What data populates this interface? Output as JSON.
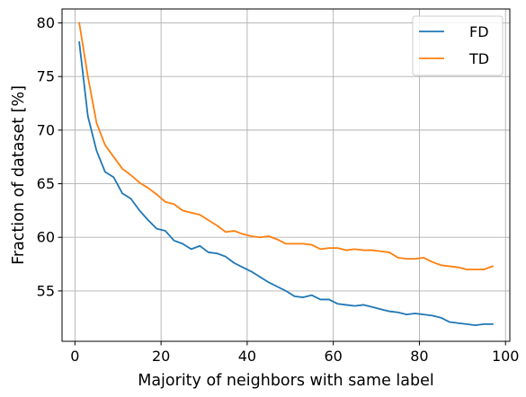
{
  "chart_data": {
    "type": "line",
    "xlabel": "Majority of neighbors with same label",
    "ylabel": "Fraction of dataset [%]",
    "xlim": [
      -3.0,
      101.0
    ],
    "ylim": [
      50.3,
      81.3
    ],
    "xticks": [
      0,
      20,
      40,
      60,
      80,
      100
    ],
    "yticks": [
      55,
      60,
      65,
      70,
      75,
      80
    ],
    "grid": true,
    "legend_position": "top-right",
    "colors": {
      "FD": "#1f77b4",
      "TD": "#ff7f0e"
    },
    "x": [
      1,
      3,
      5,
      7,
      9,
      11,
      13,
      15,
      17,
      19,
      21,
      23,
      25,
      27,
      29,
      31,
      33,
      35,
      37,
      39,
      41,
      43,
      45,
      47,
      49,
      51,
      53,
      55,
      57,
      59,
      61,
      63,
      65,
      67,
      69,
      71,
      73,
      75,
      77,
      79,
      81,
      83,
      85,
      87,
      89,
      91,
      93,
      95,
      97
    ],
    "series": [
      {
        "name": "FD",
        "values": [
          78.2,
          71.3,
          68.1,
          66.1,
          65.6,
          64.1,
          63.6,
          62.5,
          61.6,
          60.8,
          60.6,
          59.7,
          59.4,
          58.9,
          59.2,
          58.6,
          58.5,
          58.2,
          57.6,
          57.2,
          56.8,
          56.3,
          55.8,
          55.4,
          55.0,
          54.5,
          54.4,
          54.6,
          54.2,
          54.2,
          53.8,
          53.7,
          53.6,
          53.7,
          53.5,
          53.3,
          53.1,
          53.0,
          52.8,
          52.9,
          52.8,
          52.7,
          52.5,
          52.1,
          52.0,
          51.9,
          51.8,
          51.9,
          51.9
        ]
      },
      {
        "name": "TD",
        "values": [
          80.0,
          75.0,
          70.7,
          68.6,
          67.5,
          66.4,
          65.8,
          65.1,
          64.6,
          64.0,
          63.3,
          63.1,
          62.5,
          62.3,
          62.1,
          61.6,
          61.1,
          60.5,
          60.6,
          60.3,
          60.1,
          60.0,
          60.1,
          59.8,
          59.4,
          59.4,
          59.4,
          59.3,
          58.9,
          59.0,
          59.0,
          58.8,
          58.9,
          58.8,
          58.8,
          58.7,
          58.6,
          58.1,
          58.0,
          58.0,
          58.1,
          57.7,
          57.4,
          57.3,
          57.2,
          57.0,
          57.0,
          57.0,
          57.3
        ]
      }
    ]
  }
}
